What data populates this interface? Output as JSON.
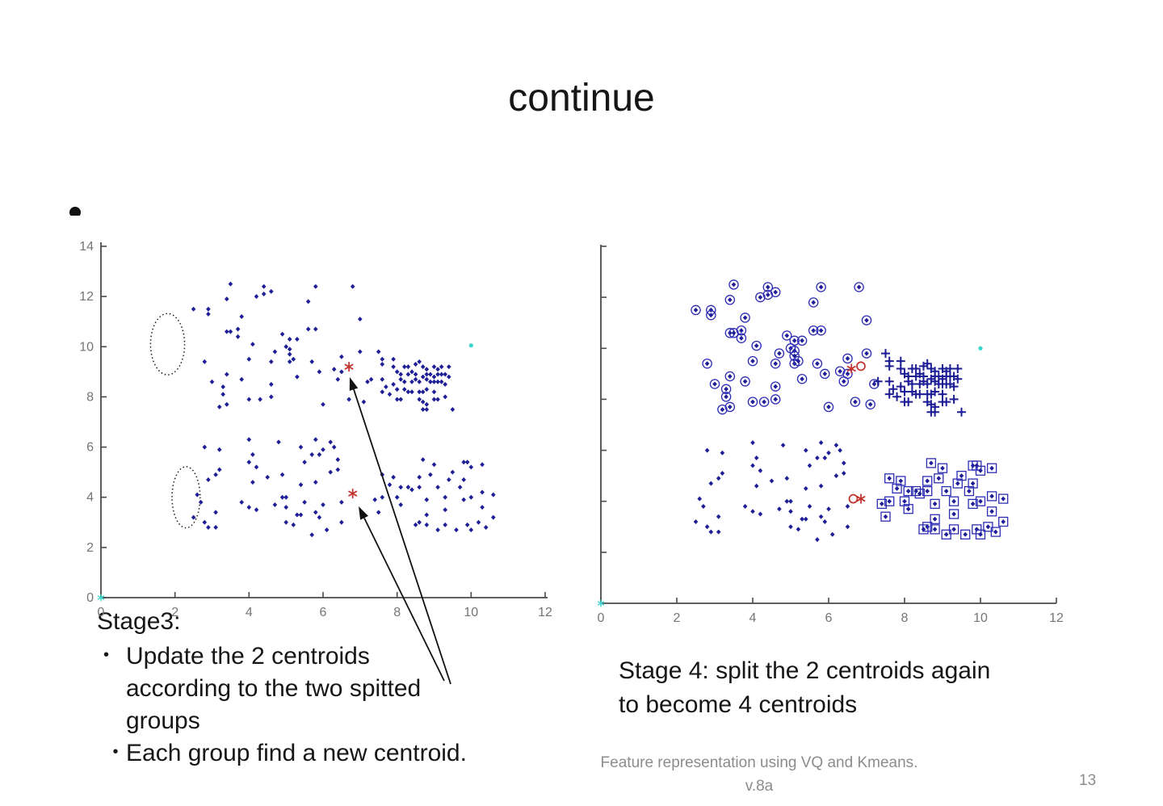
{
  "slide": {
    "title": "continue",
    "bullet_glyph": "•",
    "stage3": {
      "heading": "Stage3:",
      "bullets": [
        {
          "lines": [
            "Update the 2 centroids",
            "according to the two spitted",
            "groups"
          ]
        },
        {
          "lines": [
            "Each group find a new centroid."
          ]
        }
      ]
    },
    "stage4": {
      "lines": [
        "Stage 4: split the 2 centroids again",
        "to become 4 centroids"
      ]
    },
    "footer": {
      "line1": "Feature representation using VQ and Kmeans.",
      "line2": "v.8a",
      "page_number": "13"
    }
  },
  "colors": {
    "point_blue": "#1e1e96",
    "marker_blue": "#2d2db4",
    "centroid_red": "#c03028",
    "cyan": "#3ad6cd",
    "axis": "#4a4a4a",
    "tick_label": "#757575",
    "text_black": "#161616",
    "footer_gray": "#8c8c8c"
  },
  "chart_data": {
    "type": "scatter",
    "title": "",
    "xlabel": "",
    "ylabel": "",
    "point_groups": {
      "upper_scattered": [
        [
          3.5,
          12.5
        ],
        [
          4.4,
          12.4
        ],
        [
          4.6,
          12.2
        ],
        [
          4.4,
          12.1
        ],
        [
          4.2,
          12.0
        ],
        [
          3.4,
          11.9
        ],
        [
          5.8,
          12.4
        ],
        [
          5.6,
          11.8
        ],
        [
          6.8,
          12.4
        ],
        [
          2.5,
          11.5
        ],
        [
          2.9,
          11.5
        ],
        [
          2.9,
          11.3
        ],
        [
          3.8,
          11.2
        ],
        [
          7.0,
          11.1
        ],
        [
          5.6,
          10.7
        ],
        [
          5.8,
          10.7
        ],
        [
          3.4,
          10.6
        ],
        [
          3.5,
          10.6
        ],
        [
          3.7,
          10.7
        ],
        [
          3.7,
          10.4
        ],
        [
          4.9,
          10.5
        ],
        [
          5.1,
          10.3
        ],
        [
          5.3,
          10.3
        ],
        [
          4.1,
          10.1
        ],
        [
          5.0,
          10.0
        ],
        [
          5.1,
          9.9
        ],
        [
          4.7,
          9.8
        ],
        [
          5.1,
          9.7
        ],
        [
          7.0,
          9.8
        ],
        [
          2.8,
          9.4
        ],
        [
          4.0,
          9.5
        ],
        [
          4.6,
          9.4
        ],
        [
          5.1,
          9.4
        ],
        [
          5.2,
          9.5
        ],
        [
          5.7,
          9.4
        ],
        [
          6.5,
          9.6
        ],
        [
          6.3,
          9.1
        ],
        [
          6.5,
          9.0
        ],
        [
          5.9,
          9.0
        ],
        [
          3.0,
          8.6
        ],
        [
          3.4,
          8.9
        ],
        [
          3.8,
          8.7
        ],
        [
          5.3,
          8.8
        ],
        [
          6.4,
          8.7
        ],
        [
          4.6,
          8.5
        ],
        [
          7.2,
          8.6
        ],
        [
          3.3,
          8.4
        ],
        [
          3.3,
          8.1
        ],
        [
          4.0,
          7.9
        ],
        [
          4.3,
          7.9
        ],
        [
          4.6,
          8.0
        ],
        [
          3.2,
          7.6
        ],
        [
          3.4,
          7.7
        ],
        [
          6.0,
          7.7
        ],
        [
          6.7,
          7.9
        ],
        [
          7.1,
          7.8
        ]
      ],
      "upper_dense": [
        [
          7.5,
          9.8
        ],
        [
          7.6,
          9.5
        ],
        [
          7.9,
          9.5
        ],
        [
          7.6,
          9.3
        ],
        [
          7.9,
          9.2
        ],
        [
          8.0,
          9.0
        ],
        [
          8.2,
          9.2
        ],
        [
          8.3,
          9.2
        ],
        [
          8.5,
          9.3
        ],
        [
          8.6,
          9.4
        ],
        [
          8.7,
          9.2
        ],
        [
          8.8,
          9.1
        ],
        [
          9.0,
          9.2
        ],
        [
          9.1,
          9.1
        ],
        [
          9.2,
          9.2
        ],
        [
          9.4,
          9.2
        ],
        [
          8.1,
          8.9
        ],
        [
          8.3,
          8.9
        ],
        [
          8.4,
          9.0
        ],
        [
          8.5,
          8.9
        ],
        [
          8.7,
          8.8
        ],
        [
          8.8,
          8.9
        ],
        [
          8.9,
          8.9
        ],
        [
          9.0,
          8.8
        ],
        [
          9.1,
          8.9
        ],
        [
          9.2,
          8.9
        ],
        [
          9.3,
          8.9
        ],
        [
          9.4,
          8.8
        ],
        [
          7.3,
          8.7
        ],
        [
          7.6,
          8.7
        ],
        [
          8.1,
          8.7
        ],
        [
          8.2,
          8.6
        ],
        [
          8.4,
          8.6
        ],
        [
          8.5,
          8.7
        ],
        [
          8.6,
          8.6
        ],
        [
          8.8,
          8.7
        ],
        [
          8.9,
          8.6
        ],
        [
          9.0,
          8.6
        ],
        [
          9.1,
          8.6
        ],
        [
          9.2,
          8.6
        ],
        [
          9.3,
          8.5
        ],
        [
          7.7,
          8.4
        ],
        [
          7.9,
          8.5
        ],
        [
          8.0,
          8.3
        ],
        [
          8.2,
          8.3
        ],
        [
          8.3,
          8.2
        ],
        [
          8.4,
          8.2
        ],
        [
          8.6,
          8.2
        ],
        [
          8.7,
          8.2
        ],
        [
          8.8,
          8.3
        ],
        [
          9.0,
          8.2
        ],
        [
          7.6,
          8.2
        ],
        [
          7.8,
          8.1
        ],
        [
          8.0,
          7.9
        ],
        [
          8.1,
          7.9
        ],
        [
          8.6,
          7.9
        ],
        [
          8.7,
          7.8
        ],
        [
          8.8,
          7.7
        ],
        [
          9.0,
          7.9
        ],
        [
          9.1,
          7.9
        ],
        [
          9.3,
          8.0
        ],
        [
          8.7,
          7.5
        ],
        [
          8.8,
          7.5
        ],
        [
          9.5,
          7.5
        ]
      ],
      "lower_scattered": [
        [
          2.8,
          6.0
        ],
        [
          3.2,
          5.9
        ],
        [
          4.0,
          6.3
        ],
        [
          4.8,
          6.2
        ],
        [
          5.4,
          6.0
        ],
        [
          5.8,
          6.3
        ],
        [
          6.2,
          6.2
        ],
        [
          6.0,
          5.9
        ],
        [
          6.3,
          6.0
        ],
        [
          4.1,
          5.7
        ],
        [
          4.0,
          5.4
        ],
        [
          5.5,
          5.4
        ],
        [
          5.7,
          5.7
        ],
        [
          5.9,
          5.7
        ],
        [
          6.4,
          5.5
        ],
        [
          4.2,
          5.2
        ],
        [
          3.2,
          5.1
        ],
        [
          3.1,
          4.9
        ],
        [
          2.9,
          4.7
        ],
        [
          4.5,
          4.8
        ],
        [
          4.9,
          4.9
        ],
        [
          4.1,
          4.6
        ],
        [
          5.4,
          4.5
        ],
        [
          5.8,
          4.6
        ],
        [
          6.2,
          5.0
        ],
        [
          6.4,
          5.1
        ],
        [
          2.6,
          4.1
        ],
        [
          2.7,
          3.8
        ],
        [
          3.8,
          3.8
        ],
        [
          4.0,
          3.6
        ],
        [
          4.2,
          3.5
        ],
        [
          4.7,
          3.7
        ],
        [
          4.9,
          4.0
        ],
        [
          5.0,
          4.0
        ],
        [
          5.0,
          3.6
        ],
        [
          5.5,
          3.8
        ],
        [
          6.0,
          3.7
        ],
        [
          6.5,
          3.8
        ],
        [
          3.1,
          3.4
        ],
        [
          2.8,
          3.0
        ],
        [
          2.5,
          3.2
        ],
        [
          3.1,
          2.8
        ],
        [
          2.9,
          2.8
        ],
        [
          5.3,
          3.3
        ],
        [
          5.4,
          3.3
        ],
        [
          5.0,
          3.0
        ],
        [
          5.2,
          2.9
        ],
        [
          5.8,
          3.4
        ],
        [
          5.9,
          3.2
        ],
        [
          6.5,
          3.0
        ],
        [
          6.1,
          2.7
        ],
        [
          5.7,
          2.5
        ]
      ],
      "lower_dense": [
        [
          8.7,
          5.5
        ],
        [
          9.0,
          5.3
        ],
        [
          9.8,
          5.4
        ],
        [
          9.9,
          5.4
        ],
        [
          10.0,
          5.2
        ],
        [
          10.3,
          5.3
        ],
        [
          8.9,
          4.9
        ],
        [
          9.5,
          5.0
        ],
        [
          9.4,
          4.7
        ],
        [
          9.8,
          4.7
        ],
        [
          10.3,
          4.2
        ],
        [
          10.6,
          4.1
        ],
        [
          7.6,
          4.9
        ],
        [
          7.9,
          4.8
        ],
        [
          7.8,
          4.5
        ],
        [
          8.1,
          4.4
        ],
        [
          8.6,
          4.8
        ],
        [
          8.6,
          4.4
        ],
        [
          8.3,
          4.4
        ],
        [
          8.4,
          4.3
        ],
        [
          9.1,
          4.4
        ],
        [
          9.7,
          4.4
        ],
        [
          7.4,
          3.9
        ],
        [
          8.0,
          4.0
        ],
        [
          7.6,
          4.0
        ],
        [
          7.5,
          3.4
        ],
        [
          8.1,
          3.7
        ],
        [
          8.8,
          3.9
        ],
        [
          9.3,
          4.0
        ],
        [
          9.3,
          3.5
        ],
        [
          9.8,
          3.9
        ],
        [
          10.0,
          4.0
        ],
        [
          10.3,
          3.6
        ],
        [
          8.8,
          3.3
        ],
        [
          8.6,
          3.0
        ],
        [
          8.8,
          2.9
        ],
        [
          8.5,
          2.9
        ],
        [
          9.3,
          2.9
        ],
        [
          9.1,
          2.7
        ],
        [
          9.6,
          2.7
        ],
        [
          9.9,
          2.9
        ],
        [
          10.2,
          3.0
        ],
        [
          10.0,
          2.7
        ],
        [
          10.4,
          2.8
        ],
        [
          10.6,
          3.2
        ]
      ]
    },
    "plots": [
      {
        "name": "stage3-scatter",
        "xlim": [
          0,
          12
        ],
        "ylim": [
          0,
          14
        ],
        "xticks": [
          0,
          2,
          4,
          6,
          8,
          10,
          12
        ],
        "yticks": [
          0,
          2,
          4,
          6,
          8,
          10,
          12,
          14
        ],
        "xtick_labels_visible": true,
        "ytick_labels_visible": true,
        "grid": false,
        "series": [
          {
            "name": "data-points",
            "marker": "dot",
            "color": "navy",
            "groups": [
              "upper_scattered",
              "upper_dense",
              "lower_scattered",
              "lower_dense"
            ]
          },
          {
            "name": "updated-centroids",
            "marker": "asterisk",
            "color": "red",
            "points": [
              [
                6.7,
                9.2
              ],
              [
                6.8,
                4.15
              ]
            ]
          },
          {
            "name": "stray-point",
            "marker": "smalldot",
            "color": "cyan",
            "points": [
              [
                10.0,
                10.05
              ]
            ]
          },
          {
            "name": "origin-marker",
            "marker": "asterisk-small",
            "color": "cyan",
            "points": [
              [
                0,
                0
              ]
            ]
          }
        ],
        "ellipses": [
          {
            "cx": 1.8,
            "cy": 10.1,
            "rx": 0.46,
            "ry": 1.22
          },
          {
            "cx": 2.3,
            "cy": 4.0,
            "rx": 0.38,
            "ry": 1.22
          }
        ]
      },
      {
        "name": "stage4-scatter",
        "xlim": [
          0,
          12
        ],
        "ylim": [
          0,
          14
        ],
        "xticks": [
          0,
          2,
          4,
          6,
          8,
          10,
          12
        ],
        "yticks": [
          2,
          4,
          6,
          8,
          10,
          12,
          14
        ],
        "xtick_labels_visible": true,
        "ytick_labels_visible": false,
        "grid": false,
        "series": [
          {
            "name": "cluster-1-circled",
            "marker": "dot-circle",
            "color": "navy",
            "groups": [
              "upper_scattered"
            ]
          },
          {
            "name": "cluster-2-plus",
            "marker": "plus",
            "color": "navy",
            "groups": [
              "upper_dense"
            ]
          },
          {
            "name": "cluster-3-dots",
            "marker": "dot",
            "color": "navy",
            "groups": [
              "lower_scattered"
            ]
          },
          {
            "name": "cluster-4-squared",
            "marker": "dot-square",
            "color": "navy",
            "groups": [
              "lower_dense"
            ]
          },
          {
            "name": "split-centroids-asterisk",
            "marker": "asterisk",
            "color": "red",
            "points": [
              [
                6.6,
                9.2
              ],
              [
                6.85,
                4.1
              ]
            ]
          },
          {
            "name": "split-centroids-circle",
            "marker": "circle-open",
            "color": "red",
            "points": [
              [
                6.85,
                9.3
              ],
              [
                6.65,
                4.1
              ]
            ]
          },
          {
            "name": "stray-point",
            "marker": "smalldot",
            "color": "cyan",
            "points": [
              [
                10.0,
                10.0
              ]
            ]
          },
          {
            "name": "origin-marker",
            "marker": "asterisk-small",
            "color": "cyan",
            "points": [
              [
                0,
                0
              ]
            ]
          }
        ],
        "ellipses": []
      }
    ]
  }
}
